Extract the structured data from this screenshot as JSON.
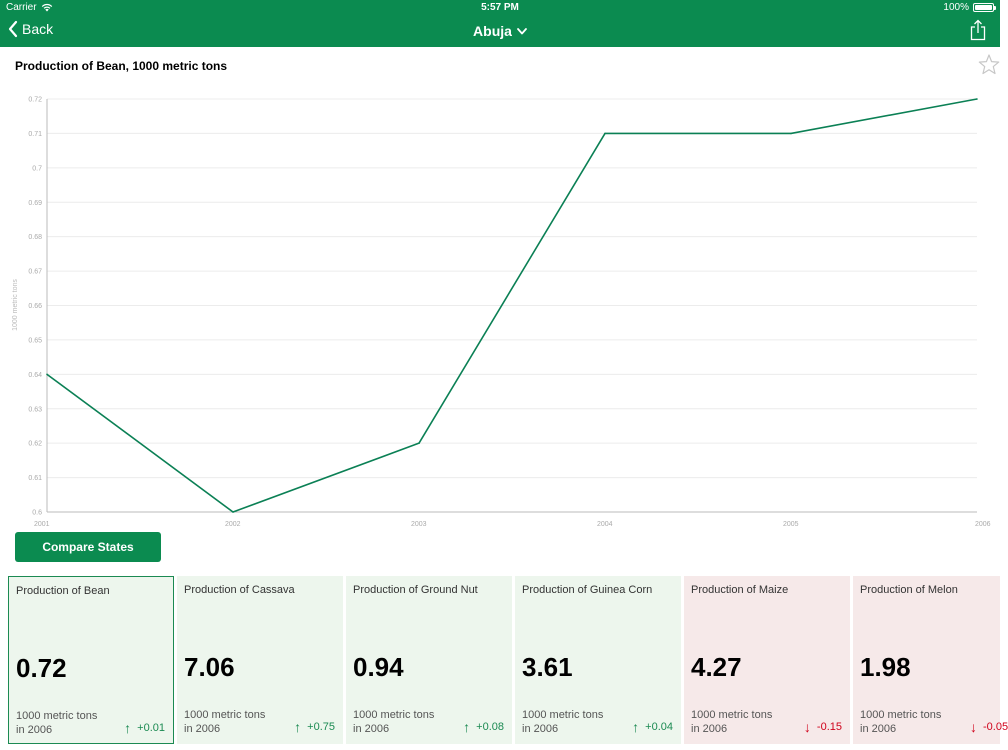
{
  "status_bar": {
    "carrier": "Carrier",
    "time": "5:57 PM",
    "battery": "100%"
  },
  "nav": {
    "back_label": "Back",
    "title": "Abuja"
  },
  "chart_title": "Production of Bean, 1000 metric tons",
  "chart_data": {
    "type": "line",
    "title": "Production of Bean, 1000 metric tons",
    "xlabel": "",
    "ylabel": "1000 metric tons",
    "x": [
      "2001",
      "2002",
      "2003",
      "2004",
      "2005",
      "2006"
    ],
    "series": [
      {
        "values": [
          0.64,
          0.6,
          0.62,
          0.71,
          0.71,
          0.72
        ]
      }
    ],
    "ylim": [
      0.6,
      0.72
    ],
    "yticks": [
      "0.6",
      "0.61",
      "0.62",
      "0.63",
      "0.64",
      "0.65",
      "0.66",
      "0.67",
      "0.68",
      "0.69",
      "0.7",
      "0.71",
      "0.72"
    ],
    "grid": true,
    "line_color": "#0b8055"
  },
  "compare_button": "Compare States",
  "cards": [
    {
      "name": "Production of Bean",
      "value": "0.72",
      "unit": "1000 metric tons",
      "year": "in 2006",
      "change": "+0.01",
      "trend": "up",
      "selected": true
    },
    {
      "name": "Production of Cassava",
      "value": "7.06",
      "unit": "1000 metric tons",
      "year": "in 2006",
      "change": "+0.75",
      "trend": "up",
      "selected": false
    },
    {
      "name": "Production of Ground Nut",
      "value": "0.94",
      "unit": "1000 metric tons",
      "year": "in 2006",
      "change": "+0.08",
      "trend": "up",
      "selected": false
    },
    {
      "name": "Production of Guinea Corn",
      "value": "3.61",
      "unit": "1000 metric tons",
      "year": "in 2006",
      "change": "+0.04",
      "trend": "up",
      "selected": false
    },
    {
      "name": "Production of Maize",
      "value": "4.27",
      "unit": "1000 metric tons",
      "year": "in 2006",
      "change": "-0.15",
      "trend": "down",
      "selected": false
    },
    {
      "name": "Production of Melon",
      "value": "1.98",
      "unit": "1000 metric tons",
      "year": "in 2006",
      "change": "-0.05",
      "trend": "down",
      "selected": false
    }
  ],
  "colors": {
    "brand_green": "#0b8b50",
    "up_bg": "#edf6ed",
    "down_bg": "#f6e9e9",
    "up_text": "#1b8a52",
    "down_text": "#d0021b"
  },
  "icons": {
    "back": "chevron-left-icon",
    "title_dropdown": "chevron-down-icon",
    "share": "share-icon",
    "favorite": "star-icon",
    "wifi": "wifi-icon",
    "battery": "battery-icon",
    "trend_up": "arrow-up-icon",
    "trend_down": "arrow-down-icon"
  }
}
